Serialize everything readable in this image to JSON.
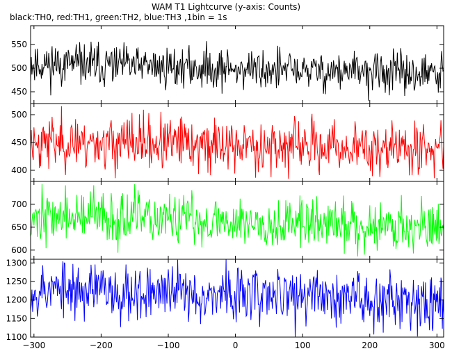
{
  "header": {
    "title": "WAM T1 Lightcurve (y-axis: Counts)",
    "subtitle": "black:TH0, red:TH1, green:TH2, blue:TH3 ,1bin = 1s"
  },
  "chart_data": [
    {
      "type": "line",
      "series": [
        {
          "name": "TH0",
          "color": "#000000"
        }
      ],
      "x_range": [
        -305,
        310
      ],
      "ylim": [
        425,
        590
      ],
      "yticks": [
        450,
        500,
        550
      ],
      "level": 510,
      "level_end": 487,
      "noise": 22,
      "seed": 11
    },
    {
      "type": "line",
      "series": [
        {
          "name": "TH1",
          "color": "#ff0000"
        }
      ],
      "x_range": [
        -305,
        310
      ],
      "ylim": [
        380,
        520
      ],
      "yticks": [
        400,
        450,
        500
      ],
      "level": 452,
      "level_end": 438,
      "noise": 24,
      "seed": 23
    },
    {
      "type": "line",
      "series": [
        {
          "name": "TH2",
          "color": "#00ff00"
        }
      ],
      "x_range": [
        -305,
        310
      ],
      "ylim": [
        580,
        750
      ],
      "yticks": [
        600,
        650,
        700
      ],
      "level": 675,
      "level_end": 650,
      "noise": 28,
      "seed": 37
    },
    {
      "type": "line",
      "series": [
        {
          "name": "TH3",
          "color": "#0000ff"
        }
      ],
      "x_range": [
        -305,
        310
      ],
      "xlabel": "",
      "xticks": [
        -300,
        -200,
        -100,
        0,
        100,
        200,
        300
      ],
      "ylim": [
        1100,
        1310
      ],
      "yticks": [
        1100,
        1150,
        1200,
        1250,
        1300
      ],
      "level": 1230,
      "level_end": 1200,
      "noise": 38,
      "seed": 53
    }
  ]
}
